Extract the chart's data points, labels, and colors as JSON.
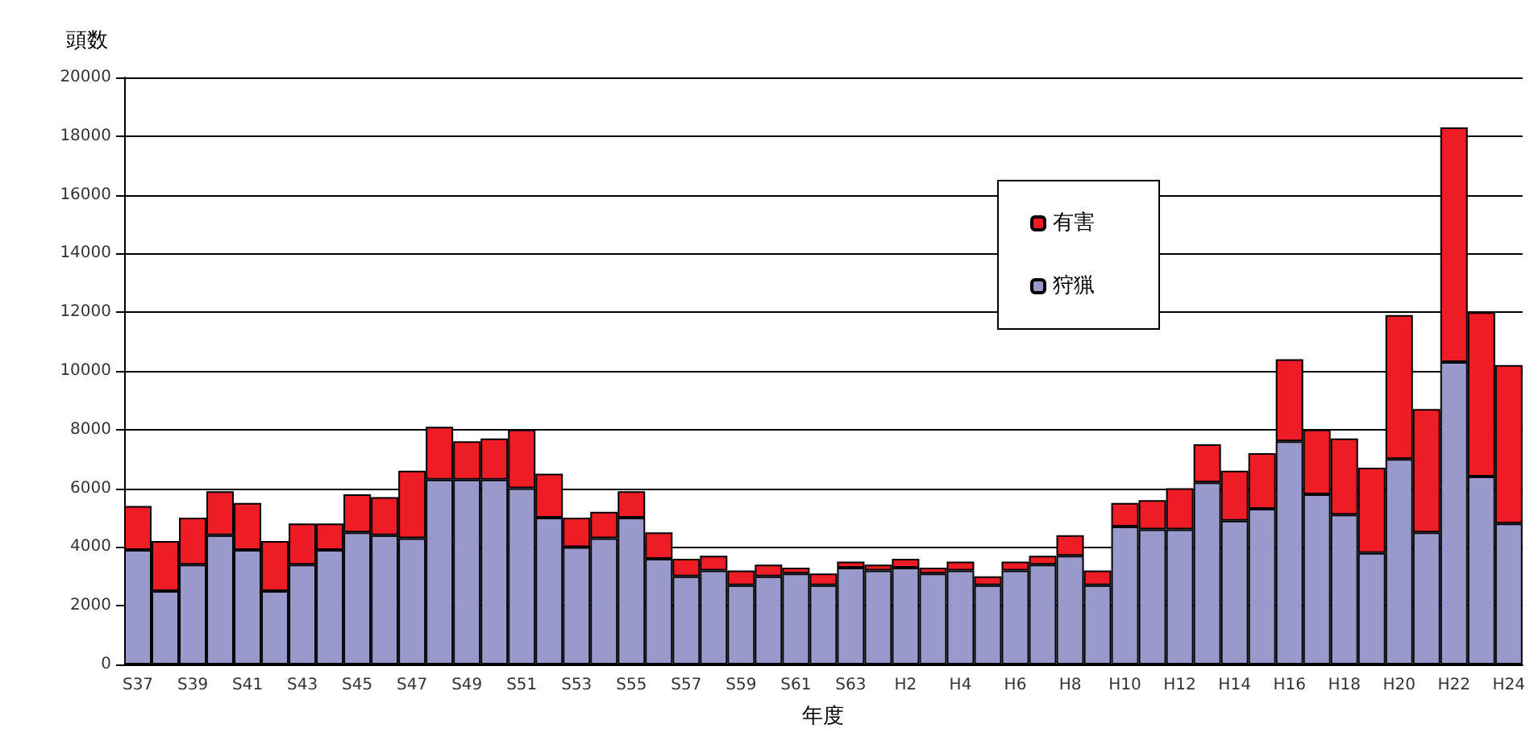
{
  "chart_data": {
    "type": "bar",
    "stacked": true,
    "xlabel": "年度",
    "ylabel": "頭数",
    "categories": [
      "S37",
      null,
      "S39",
      null,
      "S41",
      null,
      "S43",
      null,
      "S45",
      null,
      "S47",
      null,
      "S49",
      null,
      "S51",
      null,
      "S53",
      null,
      "S55",
      null,
      "S57",
      null,
      "S59",
      null,
      "S61",
      null,
      "S63",
      null,
      "H2",
      null,
      "H4",
      null,
      "H6",
      null,
      "H8",
      null,
      "H10",
      null,
      "H12",
      null,
      "H14",
      null,
      "H16",
      null,
      "H18",
      null,
      "H20",
      null,
      "H22",
      null,
      "H24"
    ],
    "series": [
      {
        "name": "狩猟",
        "color": "#9999cc",
        "values": [
          3900,
          2500,
          3400,
          4400,
          3900,
          2500,
          3400,
          3900,
          4500,
          4400,
          4300,
          6300,
          6300,
          6300,
          6000,
          5000,
          4000,
          4300,
          5000,
          3600,
          3000,
          3200,
          2700,
          3000,
          3100,
          2700,
          3300,
          3200,
          3300,
          3100,
          3200,
          2700,
          3200,
          3400,
          3700,
          2700,
          4700,
          4600,
          4600,
          6200,
          4900,
          5300,
          7600,
          5800,
          5100,
          3800,
          7000,
          4500,
          10300,
          6400,
          4800
        ]
      },
      {
        "name": "有害",
        "color": "#ee1c25",
        "values": [
          1500,
          1700,
          1600,
          1500,
          1600,
          1700,
          1400,
          900,
          1300,
          1300,
          2300,
          1800,
          1300,
          1400,
          2000,
          1500,
          1000,
          900,
          900,
          900,
          600,
          500,
          500,
          400,
          200,
          400,
          200,
          200,
          300,
          200,
          300,
          300,
          300,
          300,
          700,
          500,
          800,
          1000,
          1400,
          1300,
          1700,
          1900,
          2800,
          2200,
          2600,
          2900,
          4900,
          4200,
          8000,
          5600,
          5400
        ]
      }
    ],
    "ylim": [
      0,
      20000
    ],
    "yticks": [
      0,
      2000,
      4000,
      6000,
      8000,
      10000,
      12000,
      14000,
      16000,
      18000,
      20000
    ],
    "grid": "y",
    "legend": "top right"
  }
}
